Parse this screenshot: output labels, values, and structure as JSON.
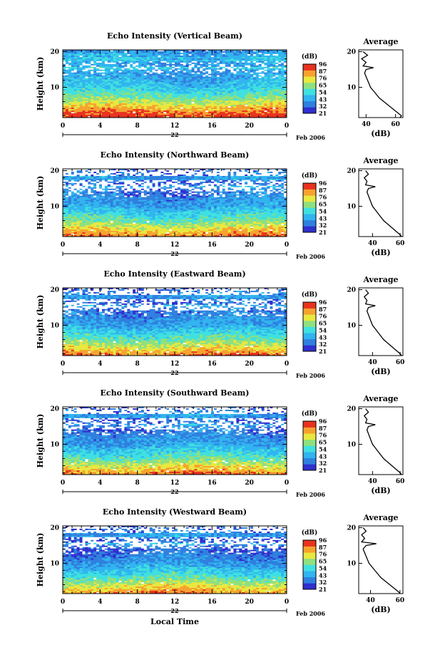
{
  "chart_data": [
    {
      "type": "heatmap",
      "title": "Echo Intensity (Vertical Beam)",
      "ylabel": "Height (km)",
      "x_ticks": [
        "0",
        "4",
        "8",
        "12",
        "16",
        "20",
        "0"
      ],
      "day_label": "22",
      "month_label": "Feb 2006",
      "y_ticks": [
        "20",
        "10"
      ],
      "xlim": [
        0,
        24
      ],
      "ylim": [
        1.5,
        20.5
      ],
      "colorbar": {
        "label": "(dB)",
        "ticks": [
          "96",
          "87",
          "76",
          "65",
          "54",
          "43",
          "32",
          "21"
        ],
        "range": [
          21,
          96
        ]
      },
      "profile": {
        "title": "Average",
        "xlabel": "(dB)",
        "x_ticks": [
          "40",
          "60"
        ],
        "xlim": [
          35,
          65
        ],
        "y_ticks": [
          "20",
          "10"
        ],
        "height_km": [
          1.5,
          2,
          3,
          4,
          5,
          6,
          7,
          8,
          9,
          10,
          11,
          12,
          13,
          14,
          15,
          15.5,
          16,
          17,
          18,
          19,
          20
        ],
        "avg_db": [
          63,
          64,
          61,
          58,
          55,
          52,
          49,
          47,
          45,
          43,
          42,
          41,
          40,
          39,
          40,
          45,
          38,
          40,
          37,
          41,
          38
        ]
      }
    },
    {
      "type": "heatmap",
      "title": "Echo Intensity (Northward Beam)",
      "ylabel": "Height (km)",
      "x_ticks": [
        "0",
        "4",
        "8",
        "12",
        "16",
        "20",
        "0"
      ],
      "day_label": "22",
      "month_label": "Feb 2006",
      "y_ticks": [
        "20",
        "10"
      ],
      "xlim": [
        0,
        24
      ],
      "ylim": [
        1.5,
        20.5
      ],
      "colorbar": {
        "label": "(dB)",
        "ticks": [
          "96",
          "87",
          "76",
          "65",
          "54",
          "43",
          "32",
          "21"
        ],
        "range": [
          21,
          96
        ]
      },
      "profile": {
        "title": "Average",
        "xlabel": "(dB)",
        "x_ticks": [
          "40",
          "60"
        ],
        "xlim": [
          30,
          62
        ],
        "y_ticks": [
          "20",
          "10"
        ],
        "height_km": [
          1.5,
          2,
          3,
          4,
          5,
          6,
          7,
          8,
          9,
          10,
          11,
          12,
          13,
          14,
          15,
          15.5,
          16,
          17,
          18,
          19,
          20
        ],
        "avg_db": [
          61,
          60,
          57,
          54,
          51,
          48,
          46,
          44,
          42,
          40,
          39,
          38,
          37,
          36,
          37,
          42,
          35,
          36,
          34,
          37,
          35
        ]
      }
    },
    {
      "type": "heatmap",
      "title": "Echo Intensity (Eastward Beam)",
      "ylabel": "Height (km)",
      "x_ticks": [
        "0",
        "4",
        "8",
        "12",
        "16",
        "20",
        "0"
      ],
      "day_label": "22",
      "month_label": "Feb 2006",
      "y_ticks": [
        "20",
        "10"
      ],
      "xlim": [
        0,
        24
      ],
      "ylim": [
        1.5,
        20.5
      ],
      "colorbar": {
        "label": "(dB)",
        "ticks": [
          "96",
          "87",
          "76",
          "65",
          "54",
          "43",
          "32",
          "21"
        ],
        "range": [
          21,
          96
        ]
      },
      "profile": {
        "title": "Average",
        "xlabel": "(dB)",
        "x_ticks": [
          "40",
          "60"
        ],
        "xlim": [
          30,
          62
        ],
        "y_ticks": [
          "20",
          "10"
        ],
        "height_km": [
          1.5,
          2,
          3,
          4,
          5,
          6,
          7,
          8,
          9,
          10,
          11,
          12,
          13,
          14,
          15,
          15.5,
          16,
          17,
          18,
          19,
          20
        ],
        "avg_db": [
          61,
          60,
          57,
          54,
          51,
          48,
          46,
          44,
          42,
          40,
          39,
          38,
          37,
          36,
          37,
          42,
          35,
          36,
          34,
          37,
          35
        ]
      }
    },
    {
      "type": "heatmap",
      "title": "Echo Intensity (Southward Beam)",
      "ylabel": "Height (km)",
      "x_ticks": [
        "0",
        "4",
        "8",
        "12",
        "16",
        "20",
        "0"
      ],
      "day_label": "22",
      "month_label": "Feb 2006",
      "y_ticks": [
        "20",
        "10"
      ],
      "xlim": [
        0,
        24
      ],
      "ylim": [
        1.5,
        20.5
      ],
      "colorbar": {
        "label": "(dB)",
        "ticks": [
          "96",
          "87",
          "76",
          "65",
          "54",
          "43",
          "32",
          "21"
        ],
        "range": [
          21,
          96
        ]
      },
      "profile": {
        "title": "Average",
        "xlabel": "(dB)",
        "x_ticks": [
          "40",
          "60"
        ],
        "xlim": [
          30,
          62
        ],
        "y_ticks": [
          "20",
          "10"
        ],
        "height_km": [
          1.5,
          2,
          3,
          4,
          5,
          6,
          7,
          8,
          9,
          10,
          11,
          12,
          13,
          14,
          15,
          15.5,
          16,
          17,
          18,
          19,
          20
        ],
        "avg_db": [
          61,
          60,
          57,
          54,
          51,
          48,
          46,
          44,
          42,
          40,
          39,
          38,
          37,
          36,
          37,
          42,
          35,
          36,
          34,
          37,
          35
        ]
      }
    },
    {
      "type": "heatmap",
      "title": "Echo Intensity (Westward Beam)",
      "ylabel": "Height (km)",
      "xlabel": "Local Time",
      "x_ticks": [
        "0",
        "4",
        "8",
        "12",
        "16",
        "20",
        "0"
      ],
      "day_label": "22",
      "month_label": "Feb 2006",
      "y_ticks": [
        "20",
        "10"
      ],
      "xlim": [
        0,
        24
      ],
      "ylim": [
        1.5,
        20.5
      ],
      "colorbar": {
        "label": "(dB)",
        "ticks": [
          "96",
          "87",
          "76",
          "65",
          "54",
          "43",
          "32",
          "21"
        ],
        "range": [
          21,
          96
        ]
      },
      "profile": {
        "title": "Average",
        "xlabel": "(dB)",
        "x_ticks": [
          "40",
          "60"
        ],
        "xlim": [
          32,
          62
        ],
        "y_ticks": [
          "20",
          "10"
        ],
        "height_km": [
          1.5,
          2,
          3,
          4,
          5,
          6,
          7,
          8,
          9,
          10,
          11,
          12,
          13,
          14,
          15,
          15.5,
          16,
          17,
          18,
          19,
          20
        ],
        "avg_db": [
          60,
          59,
          56,
          53,
          50,
          47,
          45,
          43,
          41,
          39,
          38,
          37,
          36,
          35,
          37,
          44,
          34,
          36,
          34,
          37,
          35
        ]
      }
    }
  ]
}
